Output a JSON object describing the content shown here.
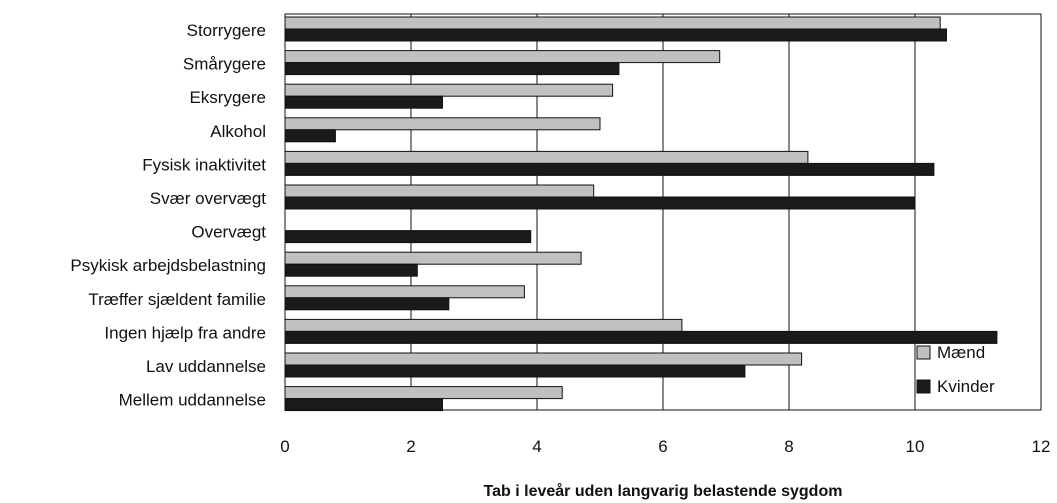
{
  "chart_data": {
    "type": "bar",
    "orientation": "horizontal",
    "title": "",
    "xlabel": "Tab i leveår uden langvarig belastende sygdom",
    "ylabel": "",
    "xlim": [
      0,
      12
    ],
    "xticks": [
      0,
      2,
      4,
      6,
      8,
      10,
      12
    ],
    "grid": "vertical",
    "legend_position": "bottom-right",
    "categories": [
      "Storrygere",
      "Smårygere",
      "Eksrygere",
      "Alkohol",
      "Fysisk inaktivitet",
      "Svær overvægt",
      "Overvægt",
      "Psykisk arbejdsbelastning",
      "Træffer sjældent familie",
      "Ingen hjælp fra andre",
      "Lav uddannelse",
      "Mellem uddannelse"
    ],
    "series": [
      {
        "name": "Mænd",
        "color": "#c0c0c0",
        "values": [
          10.4,
          6.9,
          5.2,
          5.0,
          8.3,
          4.9,
          0,
          4.7,
          3.8,
          6.3,
          8.2,
          4.4
        ]
      },
      {
        "name": "Kvinder",
        "color": "#1a1a1a",
        "values": [
          10.5,
          5.3,
          2.5,
          0.8,
          10.3,
          10.0,
          3.9,
          2.1,
          2.6,
          11.3,
          7.3,
          2.5
        ]
      }
    ]
  }
}
